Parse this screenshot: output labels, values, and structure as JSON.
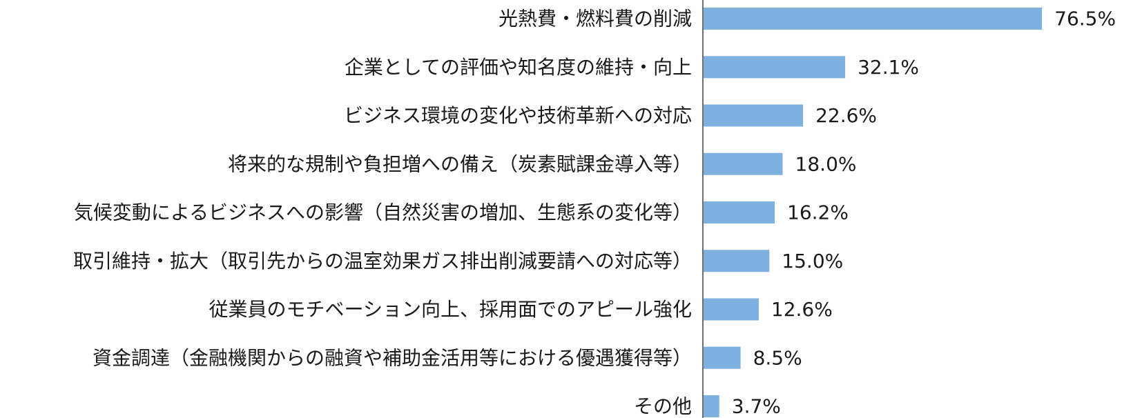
{
  "chart_data": {
    "type": "bar",
    "orientation": "horizontal",
    "categories": [
      "光熱費・燃料費の削減",
      "企業としての評価や知名度の維持・向上",
      "ビジネス環境の変化や技術革新への対応",
      "将来的な規制や負担増への備え（炭素賦課金導入等）",
      "気候変動によるビジネスへの影響（自然災害の増加、生態系の変化等）",
      "取引維持・拡大（取引先からの温室効果ガス排出削減要請への対応等）",
      "従業員のモチベーション向上、採用面でのアピール強化",
      "資金調達（金融機関からの融資や補助金活用等における優遇獲得等）",
      "その他"
    ],
    "values": [
      76.5,
      32.1,
      22.6,
      18.0,
      16.2,
      15.0,
      12.6,
      8.5,
      3.7
    ],
    "value_labels": [
      "76.5%",
      "32.1%",
      "22.6%",
      "18.0%",
      "16.2%",
      "15.0%",
      "12.6%",
      "8.5%",
      "3.7%"
    ],
    "unit": "%",
    "title": "",
    "xlabel": "",
    "ylabel": "",
    "xlim": [
      0,
      100
    ],
    "grid": false,
    "legend": "none",
    "colors": {
      "bar": "#7eb0e0",
      "axis": "#6f6f6f",
      "text": "#1a1a1a"
    }
  }
}
